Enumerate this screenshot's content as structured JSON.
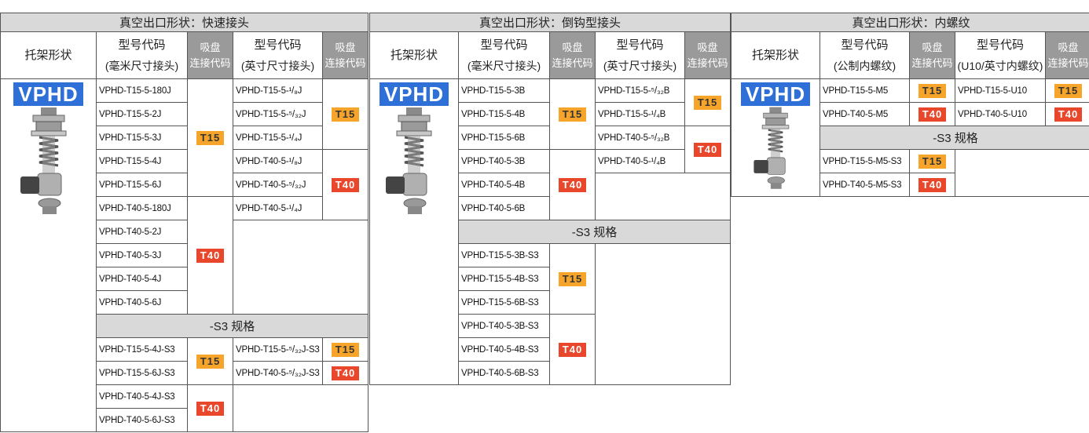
{
  "badge_colors": {
    "T15": "#f6a52a",
    "T40": "#e8472b"
  },
  "badge_text_colors": {
    "T15": "#333333",
    "T40": "#ffffff"
  },
  "sections": [
    {
      "title": "真空出口形状：快速接头",
      "bracket_header": "托架形状",
      "mm_header": [
        "型号代码",
        "(毫米尺寸接头)"
      ],
      "mm_code_header": [
        "吸盘",
        "连接代码"
      ],
      "inch_header": [
        "型号代码",
        "(英寸尺寸接头)"
      ],
      "inch_code_header": [
        "吸盘",
        "连接代码"
      ],
      "brand": "VPHD",
      "main": {
        "mm": [
          {
            "badge": "T15",
            "codes": [
              "VPHD-T15-5-180J",
              "VPHD-T15-5-2J",
              "VPHD-T15-5-3J",
              "VPHD-T15-5-4J",
              "VPHD-T15-5-6J"
            ]
          },
          {
            "badge": "T40",
            "codes": [
              "VPHD-T40-5-180J",
              "VPHD-T40-5-2J",
              "VPHD-T40-5-3J",
              "VPHD-T40-5-4J",
              "VPHD-T40-5-6J"
            ]
          }
        ],
        "inch": [
          {
            "badge": "T15",
            "codes": [
              "VPHD-T15-5-¹/₈J",
              "VPHD-T15-5-⁵/₃₂J",
              "VPHD-T15-5-¹/₄J"
            ]
          },
          {
            "badge": "T40",
            "codes": [
              "VPHD-T40-5-¹/₈J",
              "VPHD-T40-5-⁵/₃₂J",
              "VPHD-T40-5-¹/₄J"
            ]
          }
        ]
      },
      "s3": {
        "title": "-S3 规格",
        "mm": [
          {
            "badge": "T15",
            "codes": [
              "VPHD-T15-5-4J-S3",
              "VPHD-T15-5-6J-S3"
            ]
          },
          {
            "badge": "T40",
            "codes": [
              "VPHD-T40-5-4J-S3",
              "VPHD-T40-5-6J-S3"
            ]
          }
        ],
        "inch": [
          {
            "badge": "T15",
            "codes": [
              "VPHD-T15-5-⁵/₃₂J-S3"
            ]
          },
          {
            "badge": "T40",
            "codes": [
              "VPHD-T40-5-⁵/₃₂J-S3"
            ]
          }
        ]
      }
    },
    {
      "title": "真空出口形状：倒钩型接头",
      "bracket_header": "托架形状",
      "mm_header": [
        "型号代码",
        "(毫米尺寸接头)"
      ],
      "mm_code_header": [
        "吸盘",
        "连接代码"
      ],
      "inch_header": [
        "型号代码",
        "(英寸尺寸接头)"
      ],
      "inch_code_header": [
        "吸盘",
        "连接代码"
      ],
      "brand": "VPHD",
      "main": {
        "mm": [
          {
            "badge": "T15",
            "codes": [
              "VPHD-T15-5-3B",
              "VPHD-T15-5-4B",
              "VPHD-T15-5-6B"
            ]
          },
          {
            "badge": "T40",
            "codes": [
              "VPHD-T40-5-3B",
              "VPHD-T40-5-4B",
              "VPHD-T40-5-6B"
            ]
          }
        ],
        "inch": [
          {
            "badge": "T15",
            "codes": [
              "VPHD-T15-5-⁵/₃₂B",
              "VPHD-T15-5-¹/₄B"
            ]
          },
          {
            "badge": "T40",
            "codes": [
              "VPHD-T40-5-⁵/₃₂B",
              "VPHD-T40-5-¹/₄B"
            ]
          }
        ]
      },
      "s3": {
        "title": "-S3 规格",
        "mm": [
          {
            "badge": "T15",
            "codes": [
              "VPHD-T15-5-3B-S3",
              "VPHD-T15-5-4B-S3",
              "VPHD-T15-5-6B-S3"
            ]
          },
          {
            "badge": "T40",
            "codes": [
              "VPHD-T40-5-3B-S3",
              "VPHD-T40-5-4B-S3",
              "VPHD-T40-5-6B-S3"
            ]
          }
        ],
        "inch": []
      }
    },
    {
      "title": "真空出口形状：内螺纹",
      "bracket_header": "托架形状",
      "mm_header": [
        "型号代码",
        "(公制内螺纹)"
      ],
      "mm_code_header": [
        "吸盘",
        "连接代码"
      ],
      "inch_header": [
        "型号代码",
        "(U10/英寸内螺纹)"
      ],
      "inch_code_header": [
        "吸盘",
        "连接代码"
      ],
      "brand": "VPHD",
      "main": {
        "mm": [
          {
            "badge": "T15",
            "codes": [
              "VPHD-T15-5-M5"
            ]
          },
          {
            "badge": "T40",
            "codes": [
              "VPHD-T40-5-M5"
            ]
          }
        ],
        "inch": [
          {
            "badge": "T15",
            "codes": [
              "VPHD-T15-5-U10"
            ]
          },
          {
            "badge": "T40",
            "codes": [
              "VPHD-T40-5-U10"
            ]
          }
        ]
      },
      "s3": {
        "title": "-S3 规格",
        "mm": [
          {
            "badge": "T15",
            "codes": [
              "VPHD-T15-5-M5-S3"
            ]
          },
          {
            "badge": "T40",
            "codes": [
              "VPHD-T40-5-M5-S3"
            ]
          }
        ],
        "inch": []
      }
    }
  ]
}
